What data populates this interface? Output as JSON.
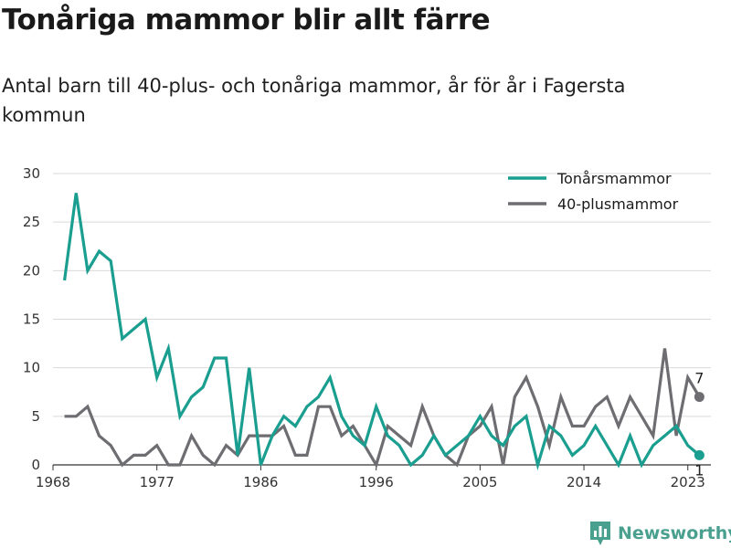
{
  "title": "Tonåriga mammor blir allt färre",
  "subtitle": "Antal barn till 40-plus- och tonåriga mammor, år för år i Fagersta kommun",
  "brand": "Newsworthy",
  "chart_data": {
    "type": "line",
    "x": [
      1969,
      1970,
      1971,
      1972,
      1973,
      1974,
      1975,
      1976,
      1977,
      1978,
      1979,
      1980,
      1981,
      1982,
      1983,
      1984,
      1985,
      1986,
      1987,
      1988,
      1989,
      1990,
      1991,
      1992,
      1993,
      1994,
      1995,
      1996,
      1997,
      1998,
      1999,
      2000,
      2001,
      2002,
      2003,
      2004,
      2005,
      2006,
      2007,
      2008,
      2009,
      2010,
      2011,
      2012,
      2013,
      2014,
      2015,
      2016,
      2017,
      2018,
      2019,
      2020,
      2021,
      2022,
      2023,
      2024
    ],
    "series": [
      {
        "name": "Tonårsmammor",
        "color": "#1a9e8f",
        "values": [
          19,
          28,
          20,
          22,
          21,
          13,
          14,
          15,
          9,
          12,
          5,
          7,
          8,
          11,
          11,
          1,
          10,
          0,
          3,
          5,
          4,
          6,
          7,
          9,
          5,
          3,
          2,
          6,
          3,
          2,
          0,
          1,
          3,
          1,
          2,
          3,
          5,
          3,
          2,
          4,
          5,
          0,
          4,
          3,
          1,
          2,
          4,
          2,
          0,
          3,
          0,
          2,
          3,
          4,
          2,
          1
        ]
      },
      {
        "name": "40-plusmammor",
        "color": "#6d6d72",
        "values": [
          5,
          5,
          6,
          3,
          2,
          0,
          1,
          1,
          2,
          0,
          0,
          3,
          1,
          0,
          2,
          1,
          3,
          3,
          3,
          4,
          1,
          1,
          6,
          6,
          3,
          4,
          2,
          0,
          4,
          3,
          2,
          6,
          3,
          1,
          0,
          3,
          4,
          6,
          0,
          7,
          9,
          6,
          2,
          7,
          4,
          4,
          6,
          7,
          4,
          7,
          5,
          3,
          12,
          3,
          9,
          7
        ]
      }
    ],
    "end_labels": [
      "7",
      "1"
    ],
    "x_ticks": [
      "1968",
      "1977",
      "1986",
      "1996",
      "2005",
      "2014",
      "2023"
    ],
    "y_ticks": [
      "0",
      "5",
      "10",
      "15",
      "20",
      "25",
      "30"
    ],
    "ylim": [
      0,
      30
    ],
    "xlim": [
      1968,
      2025
    ],
    "grid": true,
    "legend_position": "top-right"
  }
}
